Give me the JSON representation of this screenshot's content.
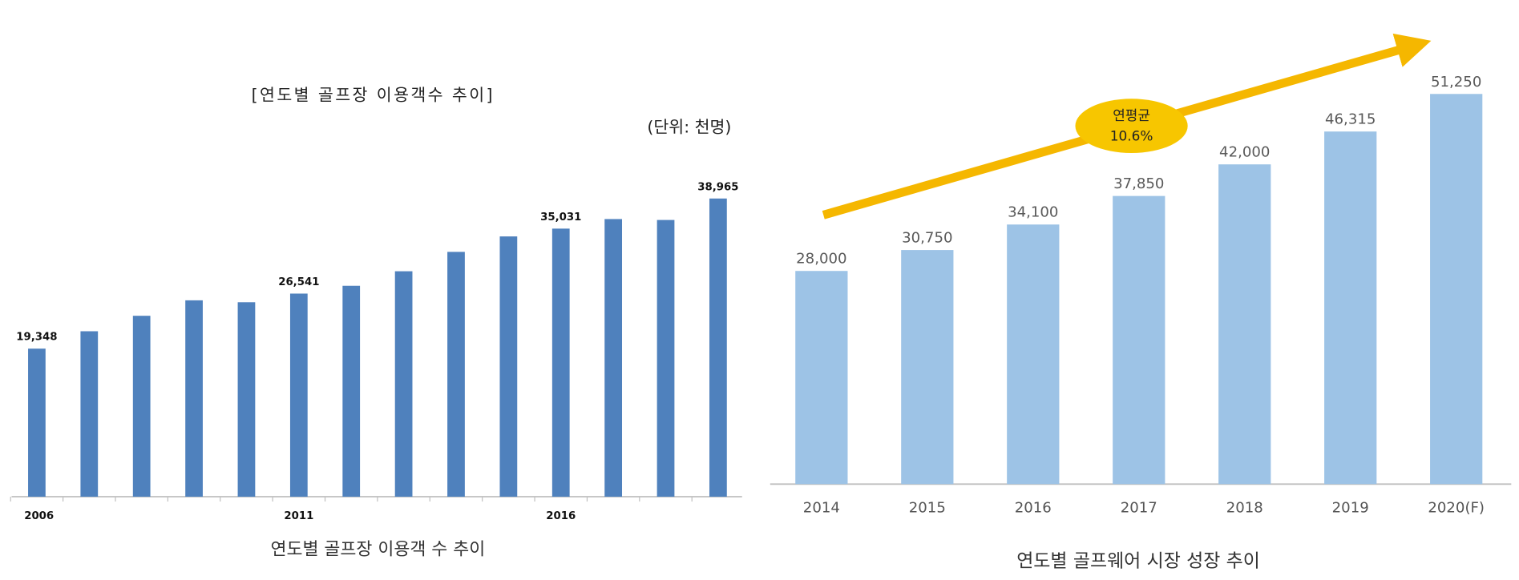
{
  "chart_data": [
    {
      "type": "bar",
      "title": "[연도별 골프장 이용객수 추이]",
      "subtitle": "(단위: 천명)",
      "caption": "연도별 골프장 이용객 수 추이",
      "categories": [
        "2006",
        null,
        null,
        null,
        null,
        "2011",
        null,
        null,
        null,
        null,
        "2016",
        null,
        null,
        null
      ],
      "values": [
        19348,
        21620,
        23640,
        25660,
        25410,
        26541,
        27560,
        29460,
        31990,
        34010,
        35031,
        36280,
        36160,
        38965
      ],
      "value_labels": [
        "19,348",
        null,
        null,
        null,
        null,
        "26,541",
        null,
        null,
        null,
        null,
        "35,031",
        null,
        null,
        "38,965"
      ],
      "color": "#4f81bd"
    },
    {
      "type": "bar",
      "caption": "연도별 골프웨어 시장 성장 추이",
      "categories": [
        "2014",
        "2015",
        "2016",
        "2017",
        "2018",
        "2019",
        "2020(F)"
      ],
      "values": [
        28000,
        30750,
        34100,
        37850,
        42000,
        46315,
        51250
      ],
      "value_labels": [
        "28,000",
        "30,750",
        "34,100",
        "37,850",
        "42,000",
        "46,315",
        "51,250"
      ],
      "color": "#9dc3e6",
      "annotation": [
        "연평균",
        "10.6%"
      ]
    }
  ]
}
